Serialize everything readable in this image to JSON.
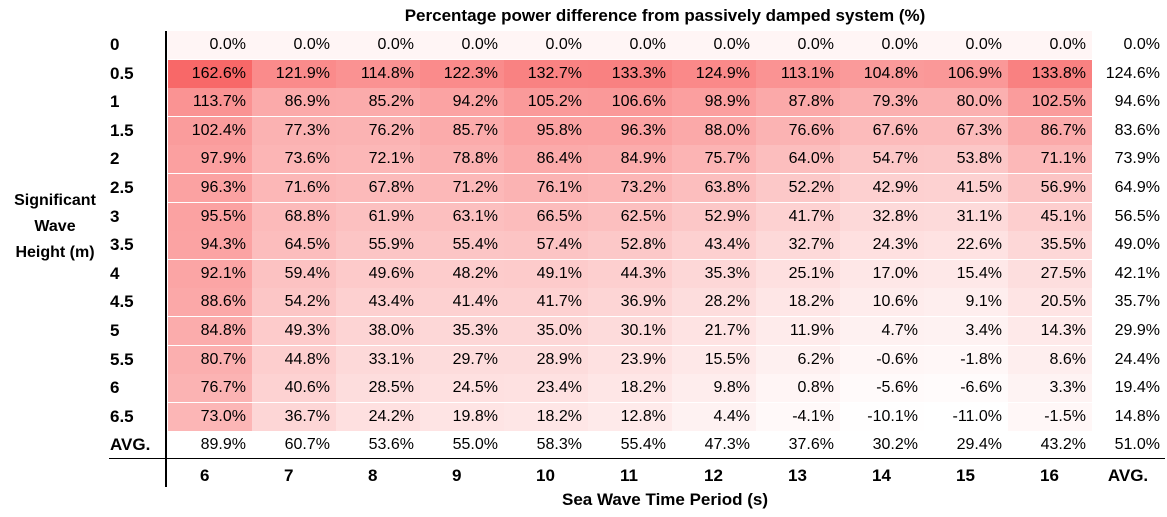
{
  "chart_data": {
    "type": "heatmap",
    "title": "Percentage power difference from passively damped system (%)",
    "ylabel": [
      "Significant",
      "Wave",
      "Height (m)"
    ],
    "xlabel": "Sea Wave Time Period (s)",
    "row_labels": [
      "0",
      "0.5",
      "1",
      "1.5",
      "2",
      "2.5",
      "3",
      "3.5",
      "4",
      "4.5",
      "5",
      "5.5",
      "6",
      "6.5",
      "AVG."
    ],
    "col_labels": [
      "6",
      "7",
      "8",
      "9",
      "10",
      "11",
      "12",
      "13",
      "14",
      "15",
      "16",
      "AVG."
    ],
    "values": [
      [
        "0.0%",
        "0.0%",
        "0.0%",
        "0.0%",
        "0.0%",
        "0.0%",
        "0.0%",
        "0.0%",
        "0.0%",
        "0.0%",
        "0.0%"
      ],
      [
        "162.6%",
        "121.9%",
        "114.8%",
        "122.3%",
        "132.7%",
        "133.3%",
        "124.9%",
        "113.1%",
        "104.8%",
        "106.9%",
        "133.8%"
      ],
      [
        "113.7%",
        "86.9%",
        "85.2%",
        "94.2%",
        "105.2%",
        "106.6%",
        "98.9%",
        "87.8%",
        "79.3%",
        "80.0%",
        "102.5%"
      ],
      [
        "102.4%",
        "77.3%",
        "76.2%",
        "85.7%",
        "95.8%",
        "96.3%",
        "88.0%",
        "76.6%",
        "67.6%",
        "67.3%",
        "86.7%"
      ],
      [
        "97.9%",
        "73.6%",
        "72.1%",
        "78.8%",
        "86.4%",
        "84.9%",
        "75.7%",
        "64.0%",
        "54.7%",
        "53.8%",
        "71.1%"
      ],
      [
        "96.3%",
        "71.6%",
        "67.8%",
        "71.2%",
        "76.1%",
        "73.2%",
        "63.8%",
        "52.2%",
        "42.9%",
        "41.5%",
        "56.9%"
      ],
      [
        "95.5%",
        "68.8%",
        "61.9%",
        "63.1%",
        "66.5%",
        "62.5%",
        "52.9%",
        "41.7%",
        "32.8%",
        "31.1%",
        "45.1%"
      ],
      [
        "94.3%",
        "64.5%",
        "55.9%",
        "55.4%",
        "57.4%",
        "52.8%",
        "43.4%",
        "32.7%",
        "24.3%",
        "22.6%",
        "35.5%"
      ],
      [
        "92.1%",
        "59.4%",
        "49.6%",
        "48.2%",
        "49.1%",
        "44.3%",
        "35.3%",
        "25.1%",
        "17.0%",
        "15.4%",
        "27.5%"
      ],
      [
        "88.6%",
        "54.2%",
        "43.4%",
        "41.4%",
        "41.7%",
        "36.9%",
        "28.2%",
        "18.2%",
        "10.6%",
        "9.1%",
        "20.5%"
      ],
      [
        "84.8%",
        "49.3%",
        "38.0%",
        "35.3%",
        "35.0%",
        "30.1%",
        "21.7%",
        "11.9%",
        "4.7%",
        "3.4%",
        "14.3%"
      ],
      [
        "80.7%",
        "44.8%",
        "33.1%",
        "29.7%",
        "28.9%",
        "23.9%",
        "15.5%",
        "6.2%",
        "-0.6%",
        "-1.8%",
        "8.6%"
      ],
      [
        "76.7%",
        "40.6%",
        "28.5%",
        "24.5%",
        "23.4%",
        "18.2%",
        "9.8%",
        "0.8%",
        "-5.6%",
        "-6.6%",
        "3.3%"
      ],
      [
        "73.0%",
        "36.7%",
        "24.2%",
        "19.8%",
        "18.2%",
        "12.8%",
        "4.4%",
        "-4.1%",
        "-10.1%",
        "-11.0%",
        "-1.5%"
      ]
    ],
    "row_averages": [
      "0.0%",
      "124.6%",
      "94.6%",
      "83.6%",
      "73.9%",
      "64.9%",
      "56.5%",
      "49.0%",
      "42.1%",
      "35.7%",
      "29.9%",
      "24.4%",
      "19.4%",
      "14.8%"
    ],
    "col_averages": [
      "89.9%",
      "60.7%",
      "53.6%",
      "55.0%",
      "58.3%",
      "55.4%",
      "47.3%",
      "37.6%",
      "30.2%",
      "29.4%",
      "43.2%"
    ],
    "overall_average": "51.0%",
    "color_scale": {
      "low": "#ffffff",
      "high": "#f86868"
    }
  }
}
